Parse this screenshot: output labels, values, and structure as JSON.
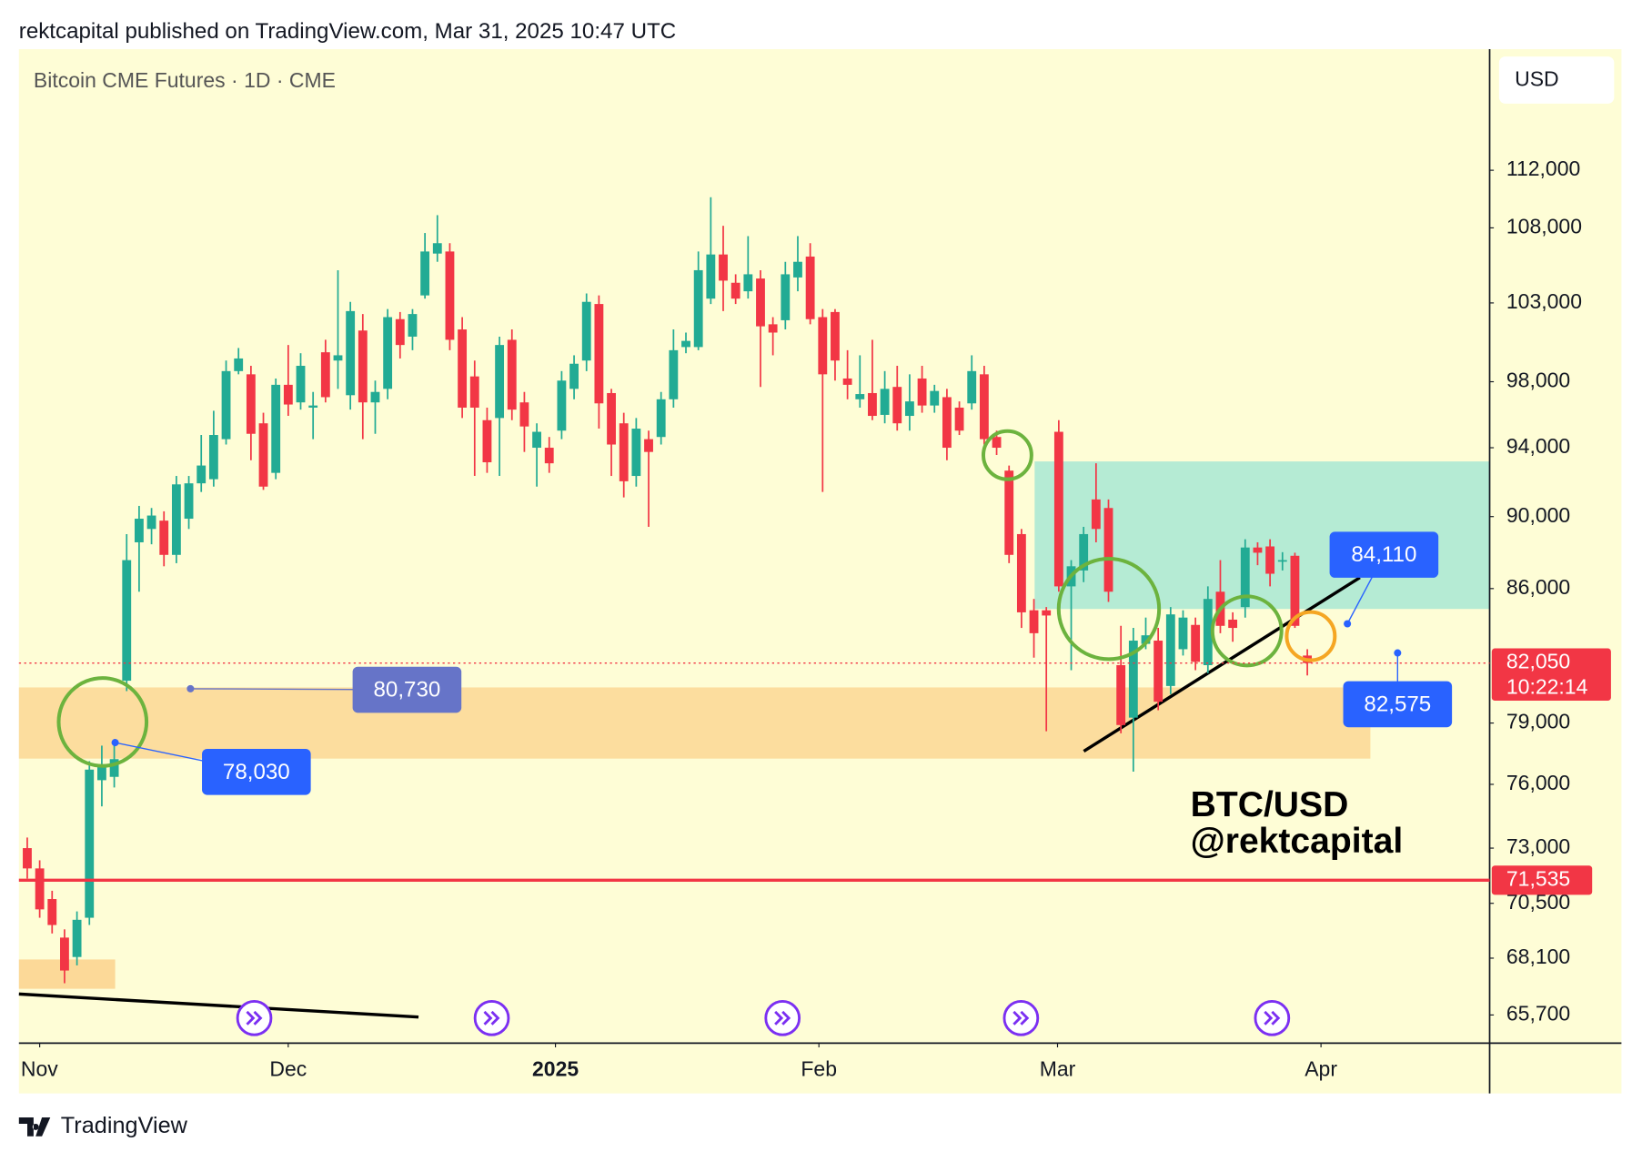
{
  "header": "rektcapital published on TradingView.com, Mar 31, 2025 10:47 UTC",
  "footer": "TradingView",
  "chart_data": {
    "type": "candlestick",
    "title": "Bitcoin CME Futures · 1D · CME",
    "currency": "USD",
    "log_scale": true,
    "up_color": "#22ab94",
    "down_color": "#f23645",
    "ylim": [
      64540,
      120900
    ],
    "yticks": [
      {
        "value": 112000,
        "label": "112,000"
      },
      {
        "value": 108000,
        "label": "108,000"
      },
      {
        "value": 103000,
        "label": "103,000"
      },
      {
        "value": 98000,
        "label": "98,000"
      },
      {
        "value": 94000,
        "label": "94,000"
      },
      {
        "value": 90000,
        "label": "90,000"
      },
      {
        "value": 86000,
        "label": "86,000"
      },
      {
        "value": 79000,
        "label": "79,000"
      },
      {
        "value": 76000,
        "label": "76,000"
      },
      {
        "value": 73000,
        "label": "73,000"
      },
      {
        "value": 70500,
        "label": "70,500"
      },
      {
        "value": 68100,
        "label": "68,100"
      },
      {
        "value": 65700,
        "label": "65,700"
      }
    ],
    "xlim": [
      -0.67,
      117.67
    ],
    "xticks": [
      {
        "value": 1,
        "label": "Nov"
      },
      {
        "value": 21,
        "label": "Dec"
      },
      {
        "value": 42.5,
        "label": "2025"
      },
      {
        "value": 63.7,
        "label": "Feb"
      },
      {
        "value": 82.9,
        "label": "Mar"
      },
      {
        "value": 104.1,
        "label": "Apr"
      }
    ],
    "open": [
      73000,
      72070,
      70690,
      68990,
      68150,
      69860,
      76200,
      76360,
      81140,
      88550,
      89300,
      89770,
      87850,
      89880,
      91910,
      92150,
      94510,
      98660,
      98460,
      95460,
      92520,
      97810,
      96730,
      96410,
      99840,
      99320,
      97170,
      101220,
      96730,
      97560,
      101950,
      100830,
      103490,
      106260,
      106400,
      101290,
      98330,
      95650,
      95780,
      100630,
      96730,
      94000,
      94000,
      95020,
      97560,
      99320,
      102930,
      97300,
      95460,
      92340,
      94510,
      94640,
      96920,
      100170,
      100170,
      103280,
      106200,
      104320,
      103760,
      104600,
      101620,
      101880,
      104670,
      106060,
      102080,
      102410,
      98200,
      96920,
      97300,
      95970,
      97680,
      95910,
      98200,
      96540,
      97050,
      96410,
      96670,
      98460,
      94640,
      92650,
      89010,
      84830,
      84830,
      94950,
      86120,
      86990,
      90980,
      90490,
      81940,
      79270,
      83050,
      83220,
      80870,
      82770,
      84050,
      81940,
      85830,
      84330,
      85000,
      88260,
      88320,
      87510,
      87800,
      82440
    ],
    "high": [
      73490,
      72440,
      71060,
      69350,
      70140,
      77120,
      77880,
      77880,
      89010,
      90610,
      90490,
      90300,
      92340,
      92340,
      94760,
      96220,
      99320,
      100110,
      98990,
      96100,
      98200,
      100300,
      99780,
      97370,
      100630,
      105150,
      103070,
      102280,
      98070,
      102600,
      102410,
      102600,
      107650,
      108870,
      106960,
      102080,
      99320,
      96410,
      100830,
      101290,
      97370,
      95460,
      94640,
      98660,
      99650,
      103620,
      103490,
      97560,
      96100,
      95780,
      95020,
      97370,
      101290,
      101090,
      106400,
      110110,
      108140,
      104880,
      107440,
      105150,
      102080,
      105710,
      107440,
      106960,
      102600,
      102600,
      99970,
      99650,
      100630,
      98660,
      98990,
      98460,
      98990,
      97810,
      97560,
      96790,
      99650,
      98990,
      95020,
      92950,
      89300,
      85440,
      85000,
      95650,
      87560,
      89420,
      93080,
      90980,
      84000,
      83890,
      84440,
      83890,
      85000,
      84830,
      84440,
      86120,
      87560,
      84720,
      88720,
      88550,
      88720,
      88000,
      87970,
      82770
    ],
    "low": [
      71610,
      69860,
      69170,
      67030,
      67790,
      69540,
      74950,
      75850,
      80610,
      85830,
      88440,
      87220,
      87390,
      89300,
      91410,
      91720,
      94190,
      98460,
      93260,
      91530,
      92150,
      95910,
      96290,
      94510,
      96730,
      97560,
      96290,
      94510,
      94830,
      96920,
      99450,
      99970,
      103280,
      105710,
      99970,
      95780,
      92340,
      92520,
      92340,
      95650,
      93750,
      91720,
      92520,
      94510,
      96920,
      98660,
      95140,
      92340,
      91100,
      91720,
      89420,
      94190,
      96410,
      99780,
      99970,
      102930,
      102470,
      102930,
      103280,
      97680,
      99650,
      101290,
      103760,
      101620,
      91410,
      98070,
      96920,
      96410,
      95650,
      95460,
      95020,
      95020,
      96100,
      96100,
      93260,
      94760,
      96290,
      94190,
      93570,
      87390,
      83890,
      82330,
      78590,
      85830,
      81680,
      86350,
      88550,
      85280,
      78490,
      76610,
      82770,
      79640,
      80450,
      82440,
      81680,
      81520,
      83610,
      83160,
      84440,
      87280,
      86120,
      86990,
      83890,
      81410
    ],
    "close": [
      72070,
      70230,
      69540,
      67570,
      69770,
      76710,
      76970,
      77220,
      87560,
      89880,
      90060,
      87850,
      91850,
      91910,
      92950,
      94760,
      98660,
      99450,
      94830,
      91720,
      97810,
      96600,
      98990,
      96540,
      97050,
      99650,
      102470,
      96730,
      97370,
      102080,
      100300,
      102280,
      106400,
      106960,
      100630,
      96410,
      96410,
      93140,
      100300,
      96290,
      95270,
      94950,
      93080,
      98070,
      99120,
      103070,
      96670,
      94190,
      92030,
      95140,
      93750,
      96920,
      99970,
      100560,
      105150,
      106200,
      104460,
      103280,
      104880,
      101490,
      101090,
      104880,
      105710,
      101950,
      98460,
      99320,
      97810,
      97240,
      95910,
      97560,
      95460,
      96790,
      96540,
      97430,
      94000,
      95020,
      98660,
      94510,
      94000,
      87850,
      84720,
      83610,
      84550,
      86120,
      87220,
      89010,
      89300,
      85830,
      78900,
      83220,
      83500,
      80070,
      84610,
      84440,
      82110,
      85440,
      84000,
      83890,
      88260,
      87970,
      86810,
      87560,
      84000,
      82050
    ],
    "price_line": {
      "value": 82050,
      "label": "82,050",
      "countdown": "10:22:14",
      "color": "#f23645"
    },
    "level": {
      "value": 71535,
      "label": "71,535",
      "color": "#f23645"
    },
    "callouts": [
      {
        "value": 84110,
        "label": "84,110",
        "color": "#2962ff"
      },
      {
        "value": 80730,
        "label": "80,730",
        "color": "#6674c8"
      },
      {
        "value": 78030,
        "label": "78,030",
        "color": "#2962ff"
      },
      {
        "value": 82575,
        "label": "82,575",
        "color": "#2962ff"
      }
    ],
    "watermark": [
      "BTC/USD",
      "@rektcapital"
    ]
  }
}
